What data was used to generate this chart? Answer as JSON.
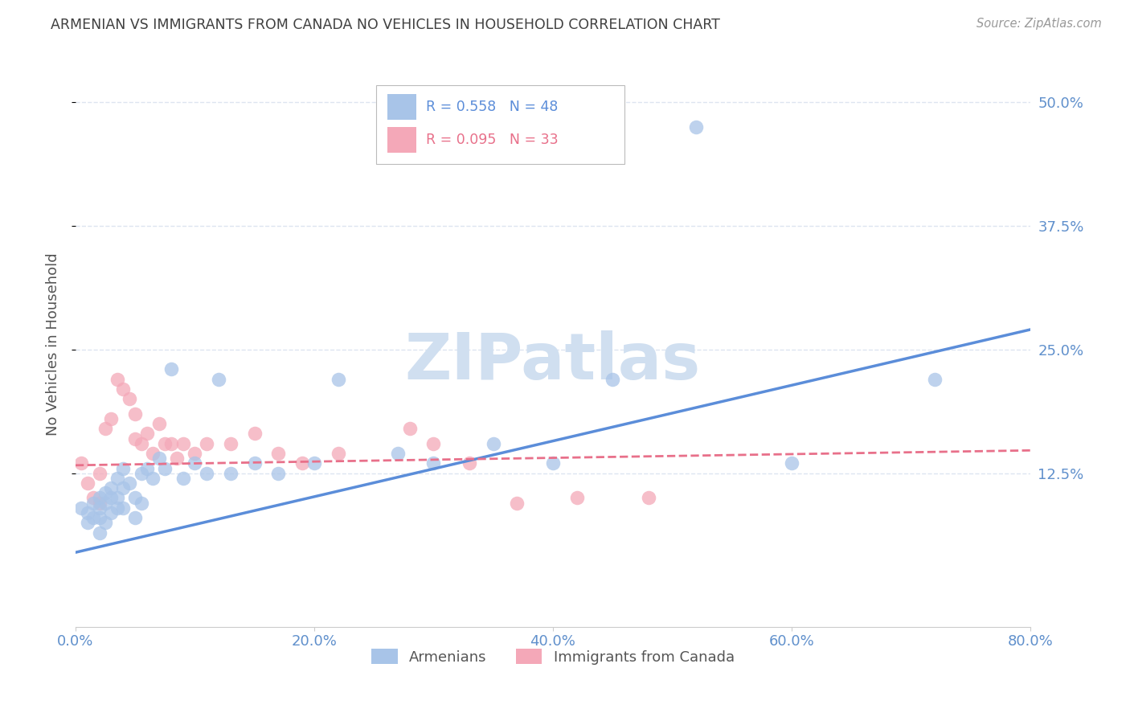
{
  "title": "ARMENIAN VS IMMIGRANTS FROM CANADA NO VEHICLES IN HOUSEHOLD CORRELATION CHART",
  "source": "Source: ZipAtlas.com",
  "xlim": [
    0.0,
    0.8
  ],
  "ylim": [
    -0.03,
    0.54
  ],
  "ylabel": "No Vehicles in Household",
  "legend_armenians": "Armenians",
  "legend_immigrants": "Immigrants from Canada",
  "r_armenians": 0.558,
  "n_armenians": 48,
  "r_immigrants": 0.095,
  "n_immigrants": 33,
  "blue_color": "#a8c4e8",
  "pink_color": "#f4a8b8",
  "blue_line_color": "#5b8dd9",
  "pink_line_color": "#e8708a",
  "title_color": "#404040",
  "axis_label_color": "#555555",
  "tick_color": "#6090cc",
  "watermark_color": "#d0dff0",
  "grid_color": "#dde5f0",
  "xtick_vals": [
    0.0,
    0.2,
    0.4,
    0.6,
    0.8
  ],
  "ytick_vals": [
    0.125,
    0.25,
    0.375,
    0.5
  ],
  "blue_line_x0": 0.0,
  "blue_line_y0": 0.045,
  "blue_line_x1": 0.8,
  "blue_line_y1": 0.27,
  "pink_line_x0": 0.0,
  "pink_line_y0": 0.133,
  "pink_line_x1": 0.8,
  "pink_line_y1": 0.148,
  "armenians_x": [
    0.005,
    0.01,
    0.01,
    0.015,
    0.015,
    0.02,
    0.02,
    0.02,
    0.02,
    0.025,
    0.025,
    0.025,
    0.03,
    0.03,
    0.03,
    0.035,
    0.035,
    0.035,
    0.04,
    0.04,
    0.04,
    0.045,
    0.05,
    0.05,
    0.055,
    0.055,
    0.06,
    0.065,
    0.07,
    0.075,
    0.08,
    0.09,
    0.1,
    0.11,
    0.12,
    0.13,
    0.15,
    0.17,
    0.2,
    0.22,
    0.27,
    0.3,
    0.35,
    0.4,
    0.45,
    0.52,
    0.6,
    0.72
  ],
  "armenians_y": [
    0.09,
    0.085,
    0.075,
    0.095,
    0.08,
    0.1,
    0.09,
    0.08,
    0.065,
    0.105,
    0.095,
    0.075,
    0.11,
    0.1,
    0.085,
    0.12,
    0.1,
    0.09,
    0.13,
    0.11,
    0.09,
    0.115,
    0.1,
    0.08,
    0.125,
    0.095,
    0.13,
    0.12,
    0.14,
    0.13,
    0.23,
    0.12,
    0.135,
    0.125,
    0.22,
    0.125,
    0.135,
    0.125,
    0.135,
    0.22,
    0.145,
    0.135,
    0.155,
    0.135,
    0.22,
    0.475,
    0.135,
    0.22
  ],
  "immigrants_x": [
    0.005,
    0.01,
    0.015,
    0.02,
    0.02,
    0.025,
    0.03,
    0.035,
    0.04,
    0.045,
    0.05,
    0.05,
    0.055,
    0.06,
    0.065,
    0.07,
    0.075,
    0.08,
    0.085,
    0.09,
    0.1,
    0.11,
    0.13,
    0.15,
    0.17,
    0.19,
    0.22,
    0.28,
    0.3,
    0.33,
    0.37,
    0.42,
    0.48
  ],
  "immigrants_y": [
    0.135,
    0.115,
    0.1,
    0.125,
    0.095,
    0.17,
    0.18,
    0.22,
    0.21,
    0.2,
    0.185,
    0.16,
    0.155,
    0.165,
    0.145,
    0.175,
    0.155,
    0.155,
    0.14,
    0.155,
    0.145,
    0.155,
    0.155,
    0.165,
    0.145,
    0.135,
    0.145,
    0.17,
    0.155,
    0.135,
    0.095,
    0.1,
    0.1
  ]
}
